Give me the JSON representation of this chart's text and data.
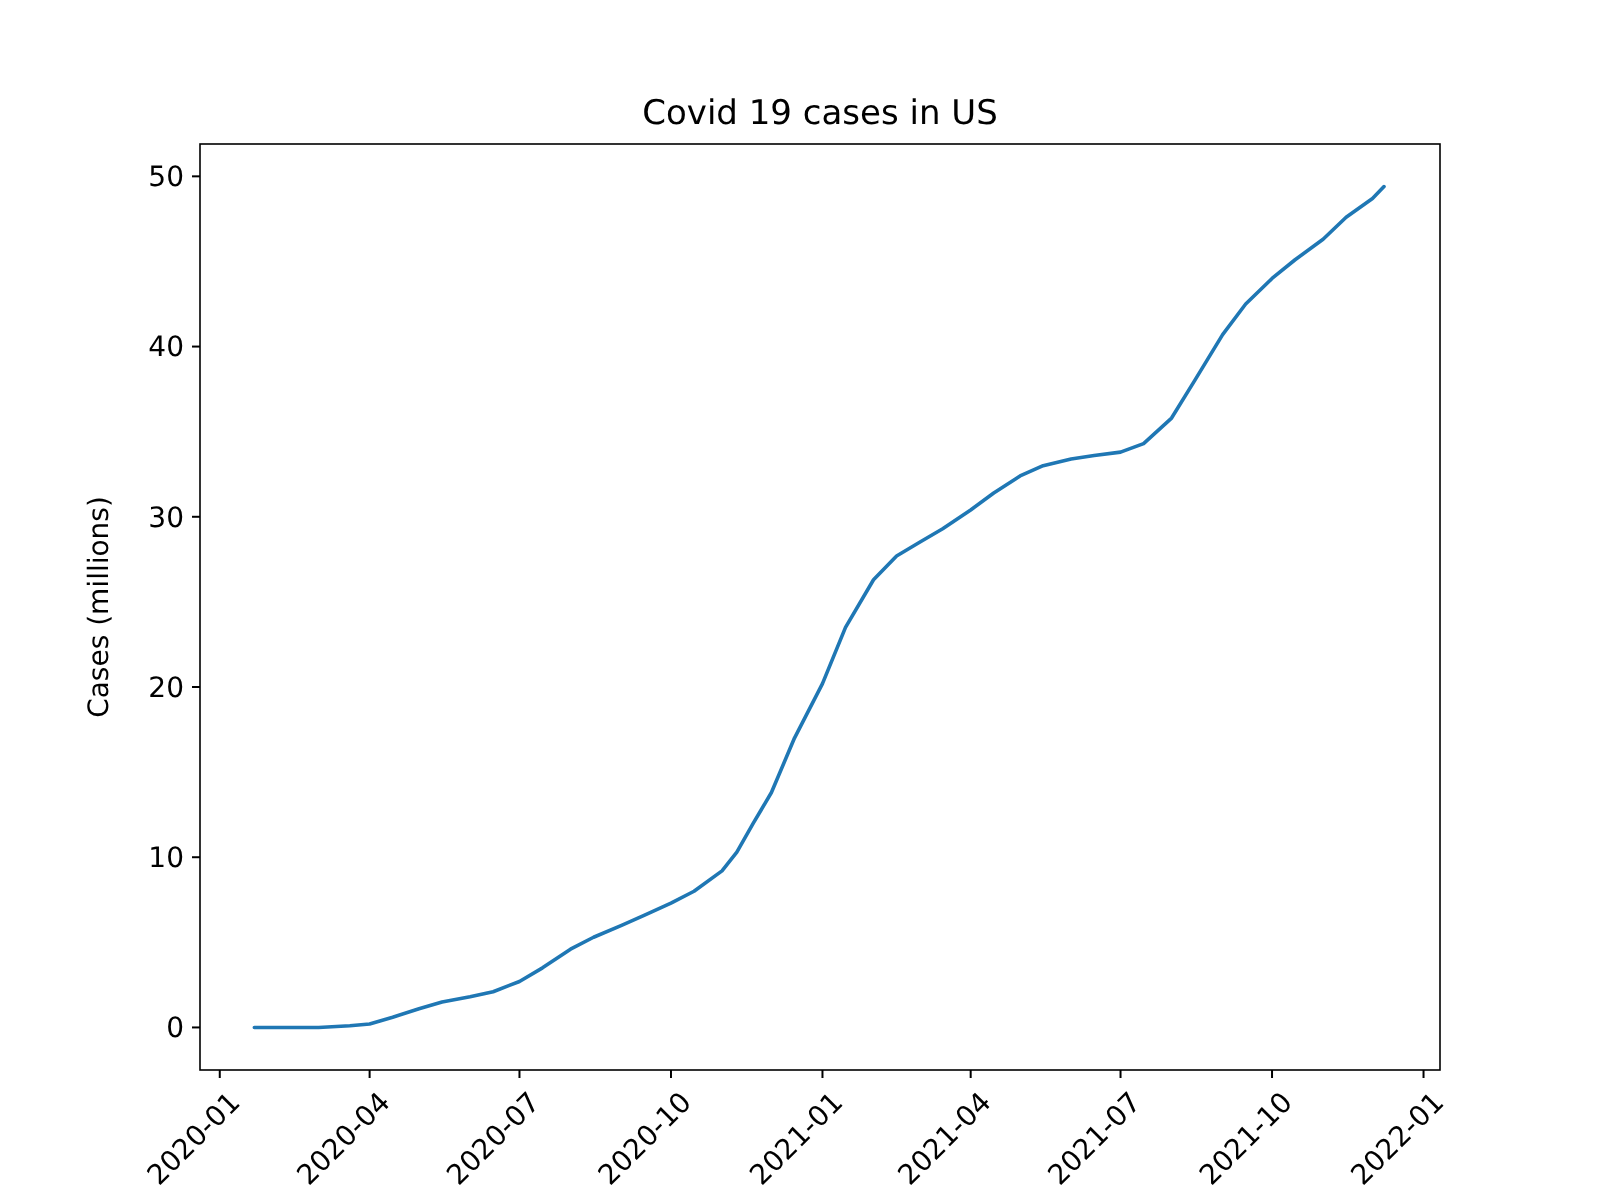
{
  "chart_data": {
    "type": "line",
    "title": "Covid 19 cases in US",
    "ylabel": "Cases (millions)",
    "x": [
      "2020-01-22",
      "2020-03-01",
      "2020-03-20",
      "2020-04-01",
      "2020-04-15",
      "2020-05-01",
      "2020-05-15",
      "2020-06-01",
      "2020-06-15",
      "2020-07-01",
      "2020-07-15",
      "2020-08-01",
      "2020-08-15",
      "2020-09-01",
      "2020-09-15",
      "2020-10-01",
      "2020-10-15",
      "2020-11-01",
      "2020-11-10",
      "2020-11-20",
      "2020-12-01",
      "2020-12-15",
      "2021-01-01",
      "2021-01-15",
      "2021-02-01",
      "2021-02-15",
      "2021-03-01",
      "2021-03-15",
      "2021-04-01",
      "2021-04-15",
      "2021-05-01",
      "2021-05-15",
      "2021-06-01",
      "2021-06-15",
      "2021-07-01",
      "2021-07-15",
      "2021-08-01",
      "2021-08-15",
      "2021-09-01",
      "2021-09-15",
      "2021-10-01",
      "2021-10-15",
      "2021-11-01",
      "2021-11-15",
      "2021-12-01",
      "2021-12-08"
    ],
    "series": [
      {
        "color": "#1f77b4",
        "values": [
          0,
          0,
          0.1,
          0.2,
          0.6,
          1.1,
          1.5,
          1.8,
          2.1,
          2.7,
          3.5,
          4.6,
          5.3,
          6.0,
          6.6,
          7.3,
          8.0,
          9.2,
          10.3,
          12.0,
          13.8,
          17.0,
          20.2,
          23.5,
          26.3,
          27.7,
          28.5,
          29.3,
          30.4,
          31.4,
          32.4,
          33.0,
          33.4,
          33.6,
          33.8,
          34.3,
          35.8,
          38.0,
          40.7,
          42.5,
          44.0,
          45.1,
          46.3,
          47.6,
          48.7,
          49.4
        ]
      }
    ],
    "xlim": [
      "2019-12-20",
      "2022-01-11"
    ],
    "xticks": [
      {
        "value": "2020-01",
        "label": "2020-01"
      },
      {
        "value": "2020-04",
        "label": "2020-04"
      },
      {
        "value": "2020-07",
        "label": "2020-07"
      },
      {
        "value": "2020-10",
        "label": "2020-10"
      },
      {
        "value": "2021-01",
        "label": "2021-01"
      },
      {
        "value": "2021-04",
        "label": "2021-04"
      },
      {
        "value": "2021-07",
        "label": "2021-07"
      },
      {
        "value": "2021-10",
        "label": "2021-10"
      },
      {
        "value": "2022-01",
        "label": "2022-01"
      }
    ],
    "ylim": [
      -2.5,
      51.9
    ],
    "yticks": [
      0,
      10,
      20,
      30,
      40,
      50
    ],
    "grid": false,
    "line_style": "solid"
  }
}
